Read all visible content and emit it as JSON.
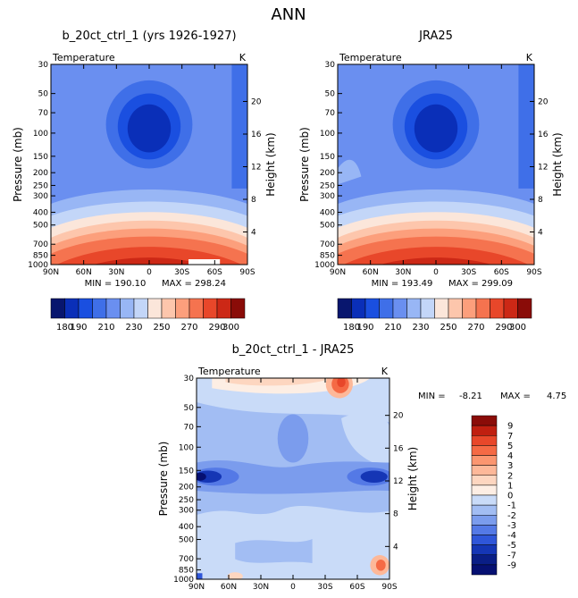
{
  "chart_data": {
    "type": "heatmap",
    "title": "ANN",
    "x_ticks": [
      "90N",
      "60N",
      "30N",
      "0",
      "30S",
      "60S",
      "90S"
    ],
    "pressure_ticks": [
      30,
      50,
      70,
      100,
      150,
      200,
      250,
      300,
      400,
      500,
      700,
      850,
      1000
    ],
    "height_ticks": [
      20,
      16,
      12,
      8,
      4
    ],
    "left_axis_label": "Pressure (mb)",
    "right_axis_label": "Height (km)",
    "panels": [
      {
        "title": "b_20ct_ctrl_1 (yrs 1926-1927)",
        "variable": "Temperature",
        "units": "K",
        "min_label": "MIN = 190.10",
        "max_label": "MAX = 298.24"
      },
      {
        "title": "JRA25",
        "variable": "Temperature",
        "units": "K",
        "min_label": "MIN = 193.49",
        "max_label": "MAX = 299.09"
      },
      {
        "title": "b_20ct_ctrl_1 - JRA25",
        "variable": "Temperature",
        "units": "K",
        "min_label": "MIN =",
        "min_value": "-8.21",
        "max_label": "MAX =",
        "max_value": "4.75"
      }
    ],
    "temperature_colorbar": {
      "levels": [
        180,
        190,
        200,
        210,
        220,
        230,
        240,
        250,
        260,
        270,
        280,
        290,
        300
      ],
      "labels": [
        "180",
        "190",
        "210",
        "230",
        "250",
        "270",
        "290",
        "300"
      ],
      "colors": [
        "#08166e",
        "#0a2fb8",
        "#1a4fe0",
        "#3f6fe8",
        "#6a8ff0",
        "#98b6f5",
        "#c3d6f8",
        "#fbe6da",
        "#fdc6ac",
        "#fc9f7c",
        "#f5734f",
        "#e8472a",
        "#cc2816",
        "#8a0c08"
      ]
    },
    "difference_colorbar": {
      "labels": [
        "9",
        "7",
        "5",
        "4",
        "3",
        "2",
        "1",
        "0",
        "-1",
        "-2",
        "-3",
        "-4",
        "-5",
        "-7",
        "-9"
      ],
      "colors": [
        "#8a0c08",
        "#c01f10",
        "#e8472a",
        "#f56a45",
        "#fb9670",
        "#fdb899",
        "#fdd6c0",
        "#fdeee4",
        "#c9dbf8",
        "#a2bdf3",
        "#7b9ced",
        "#5479e6",
        "#2f56d9",
        "#1536b5",
        "#0a1e86",
        "#061072"
      ]
    }
  }
}
